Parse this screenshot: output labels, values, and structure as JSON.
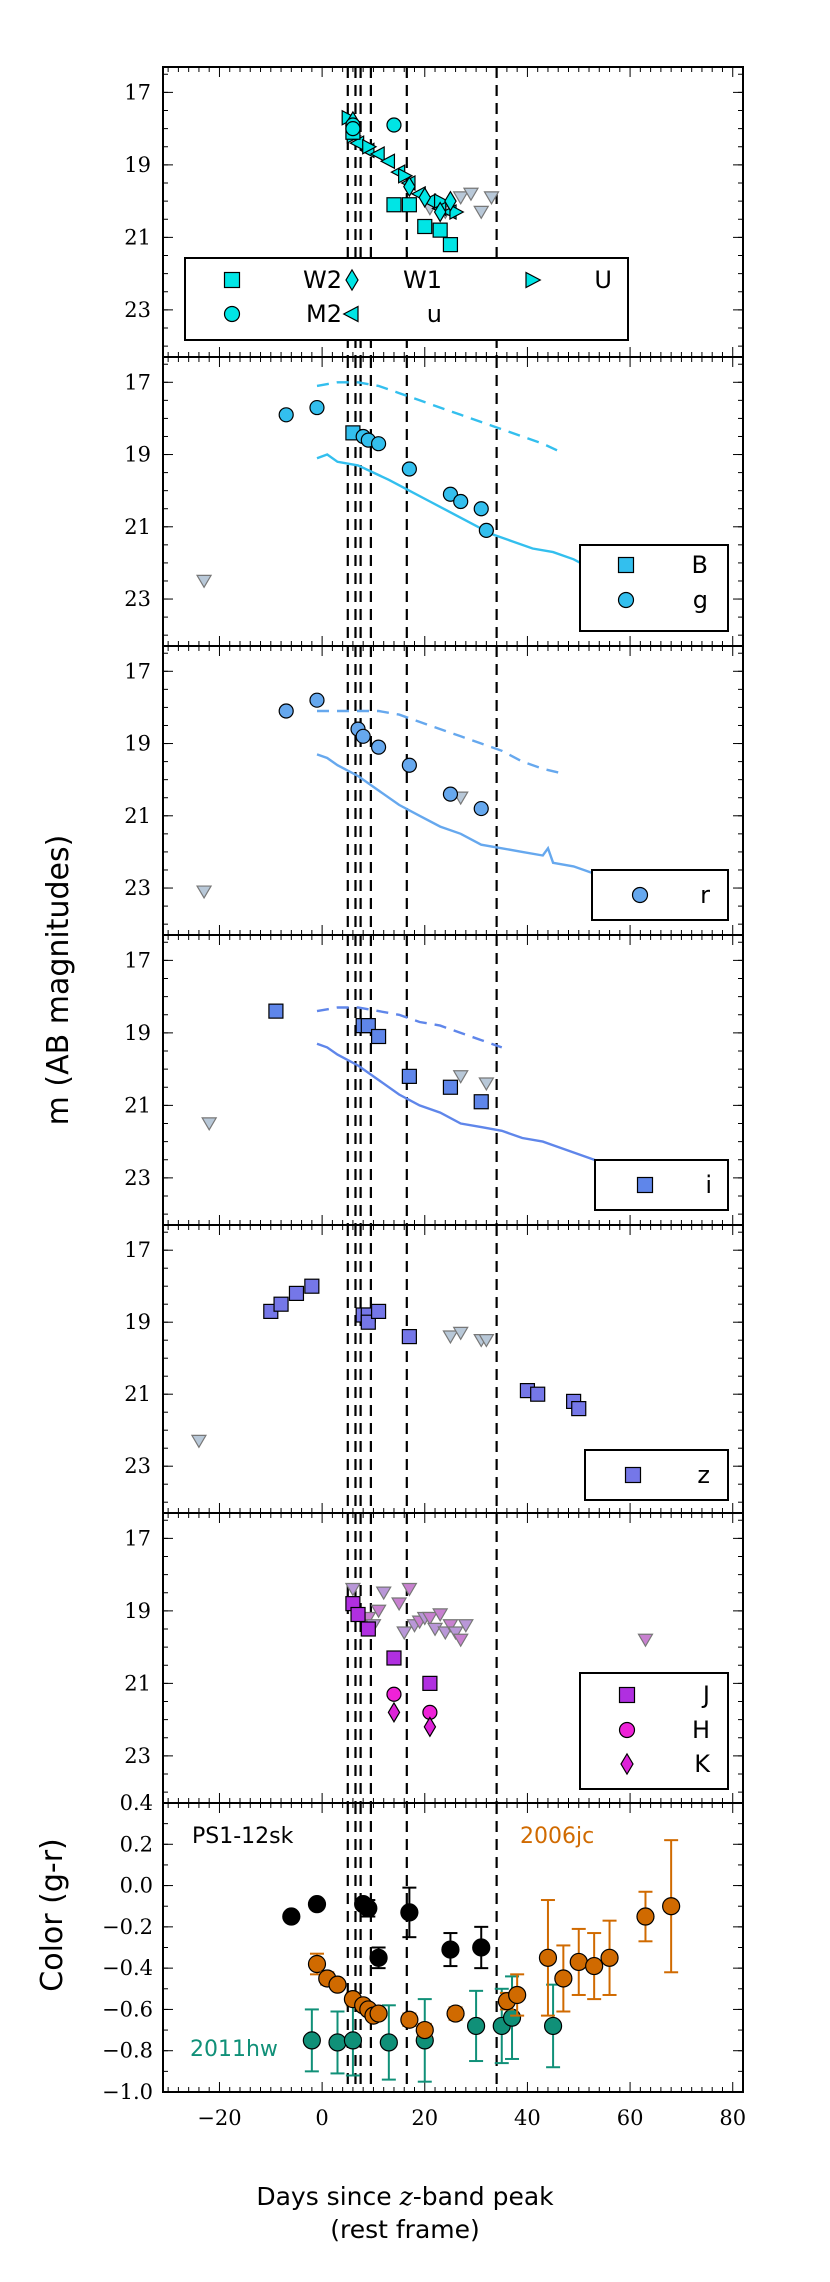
{
  "chart_data": {
    "type": "scatter",
    "x_range": [
      -31,
      82
    ],
    "x_ticks": [
      "−20",
      "0",
      "20",
      "40",
      "60",
      "80"
    ],
    "x_tick_values": [
      -20,
      0,
      20,
      40,
      60,
      80
    ],
    "xlabel_line1": "Days since ",
    "xlabel_z": "z",
    "xlabel_line1b": "-band peak",
    "xlabel_line2": "(rest frame)",
    "shared_ylabel": "m (AB magnitudes)",
    "color_ylabel": "Color (g-r)",
    "vlines": [
      5,
      6.5,
      7.5,
      9.5,
      16.5,
      34
    ],
    "mag_ylim": [
      24.3,
      16.3
    ],
    "mag_ticks": [
      "17",
      "19",
      "21",
      "23"
    ],
    "mag_tick_values": [
      17,
      19,
      21,
      23
    ],
    "uv": {
      "legend": [
        {
          "name": "W2",
          "marker": "square"
        },
        {
          "name": "W1",
          "marker": "diamond"
        },
        {
          "name": "U",
          "marker": "tri-right"
        },
        {
          "name": "M2",
          "marker": "circle"
        },
        {
          "name": "u",
          "marker": "tri-left"
        }
      ],
      "color": "#00e5e5",
      "W2": [
        [
          6,
          18.1
        ],
        [
          14,
          20.1
        ],
        [
          17,
          20.1
        ],
        [
          20,
          20.7
        ],
        [
          23,
          20.8
        ],
        [
          25,
          21.2
        ]
      ],
      "M2": [
        [
          6,
          17.9
        ],
        [
          14,
          17.9
        ],
        [
          6,
          18.0
        ]
      ],
      "W1": [
        [
          6,
          17.8
        ],
        [
          17,
          19.6
        ],
        [
          20,
          19.9
        ],
        [
          23,
          20.3
        ],
        [
          25,
          20.0
        ]
      ],
      "u": [
        [
          7,
          18.4
        ],
        [
          9,
          18.6
        ],
        [
          11,
          18.7
        ],
        [
          13,
          18.9
        ],
        [
          15,
          19.2
        ],
        [
          17,
          19.5
        ],
        [
          19,
          19.8
        ],
        [
          21,
          20.0
        ],
        [
          23,
          20.2
        ],
        [
          25,
          20.3
        ]
      ],
      "U": [
        [
          5,
          17.7
        ],
        [
          6,
          18.2
        ],
        [
          9,
          18.5
        ],
        [
          16,
          19.3
        ],
        [
          23,
          20.0
        ],
        [
          26,
          20.3
        ]
      ],
      "limits": [
        [
          21,
          20.2
        ],
        [
          24,
          20.3
        ],
        [
          27,
          19.9
        ],
        [
          29,
          19.8
        ],
        [
          31,
          20.3
        ],
        [
          33,
          19.9
        ]
      ]
    },
    "g": {
      "legend": [
        {
          "name": "B",
          "marker": "square"
        },
        {
          "name": "g",
          "marker": "circle"
        }
      ],
      "color": "#33bfee",
      "B": [
        [
          6,
          18.4
        ]
      ],
      "g": [
        [
          -7,
          17.9
        ],
        [
          -1,
          17.7
        ],
        [
          8,
          18.5
        ],
        [
          9,
          18.6
        ],
        [
          11,
          18.7
        ],
        [
          17,
          19.4
        ],
        [
          25,
          20.1
        ],
        [
          27,
          20.3
        ],
        [
          31,
          20.5
        ],
        [
          32,
          21.1
        ]
      ],
      "limits": [
        [
          -23,
          22.5
        ]
      ],
      "solid": [
        [
          -1,
          19.1
        ],
        [
          1,
          19.0
        ],
        [
          3,
          19.2
        ],
        [
          7,
          19.3
        ],
        [
          13,
          19.7
        ],
        [
          17,
          20.0
        ],
        [
          21,
          20.3
        ],
        [
          25,
          20.6
        ],
        [
          29,
          20.9
        ],
        [
          33,
          21.2
        ],
        [
          37,
          21.4
        ],
        [
          41,
          21.6
        ],
        [
          45,
          21.7
        ],
        [
          49,
          21.9
        ],
        [
          53,
          22.2
        ],
        [
          57,
          22.3
        ]
      ],
      "dashed": [
        [
          -1,
          17.1
        ],
        [
          3,
          17.0
        ],
        [
          7,
          17.0
        ],
        [
          11,
          17.1
        ],
        [
          15,
          17.3
        ],
        [
          19,
          17.5
        ],
        [
          23,
          17.7
        ],
        [
          27,
          17.9
        ],
        [
          31,
          18.1
        ],
        [
          35,
          18.3
        ],
        [
          39,
          18.5
        ],
        [
          43,
          18.7
        ],
        [
          46,
          18.9
        ]
      ]
    },
    "r": {
      "legend": [
        {
          "name": "r",
          "marker": "circle"
        }
      ],
      "color": "#66a8ee",
      "r": [
        [
          -7,
          18.1
        ],
        [
          -1,
          17.8
        ],
        [
          7,
          18.6
        ],
        [
          8,
          18.8
        ],
        [
          11,
          19.1
        ],
        [
          17,
          19.6
        ],
        [
          25,
          20.4
        ],
        [
          31,
          20.8
        ]
      ],
      "limits": [
        [
          -23,
          23.1
        ],
        [
          27,
          20.5
        ]
      ],
      "solid": [
        [
          -1,
          19.3
        ],
        [
          1,
          19.4
        ],
        [
          3,
          19.6
        ],
        [
          7,
          19.9
        ],
        [
          11,
          20.3
        ],
        [
          15,
          20.7
        ],
        [
          19,
          21.0
        ],
        [
          23,
          21.3
        ],
        [
          27,
          21.5
        ],
        [
          31,
          21.8
        ],
        [
          35,
          21.9
        ],
        [
          39,
          22.0
        ],
        [
          43,
          22.1
        ],
        [
          44,
          21.9
        ],
        [
          45,
          22.3
        ],
        [
          49,
          22.4
        ],
        [
          53,
          22.6
        ],
        [
          57,
          22.8
        ]
      ],
      "dashed": [
        [
          -1,
          18.1
        ],
        [
          3,
          18.1
        ],
        [
          7,
          18.1
        ],
        [
          11,
          18.1
        ],
        [
          15,
          18.2
        ],
        [
          19,
          18.4
        ],
        [
          23,
          18.6
        ],
        [
          27,
          18.8
        ],
        [
          31,
          19.0
        ],
        [
          35,
          19.2
        ],
        [
          39,
          19.5
        ],
        [
          43,
          19.7
        ],
        [
          46,
          19.8
        ]
      ]
    },
    "i": {
      "legend": [
        {
          "name": "i",
          "marker": "square"
        }
      ],
      "color": "#5f86ea",
      "i": [
        [
          -9,
          18.4
        ],
        [
          8,
          18.8
        ],
        [
          9,
          18.8
        ],
        [
          11,
          19.1
        ],
        [
          17,
          20.2
        ],
        [
          25,
          20.5
        ],
        [
          31,
          20.9
        ]
      ],
      "limits": [
        [
          -22,
          21.5
        ],
        [
          27,
          20.2
        ],
        [
          32,
          20.4
        ]
      ],
      "solid": [
        [
          -1,
          19.3
        ],
        [
          1,
          19.4
        ],
        [
          3,
          19.6
        ],
        [
          7,
          19.9
        ],
        [
          11,
          20.3
        ],
        [
          15,
          20.7
        ],
        [
          19,
          21.0
        ],
        [
          23,
          21.2
        ],
        [
          27,
          21.5
        ],
        [
          31,
          21.6
        ],
        [
          35,
          21.7
        ],
        [
          39,
          21.9
        ],
        [
          43,
          22.0
        ],
        [
          47,
          22.2
        ],
        [
          51,
          22.4
        ],
        [
          55,
          22.6
        ],
        [
          57,
          22.7
        ]
      ],
      "dashed": [
        [
          -1,
          18.4
        ],
        [
          3,
          18.3
        ],
        [
          7,
          18.3
        ],
        [
          11,
          18.4
        ],
        [
          15,
          18.5
        ],
        [
          19,
          18.7
        ],
        [
          23,
          18.8
        ],
        [
          27,
          19.0
        ],
        [
          31,
          19.2
        ],
        [
          35,
          19.4
        ]
      ]
    },
    "z": {
      "legend": [
        {
          "name": "z",
          "marker": "square"
        }
      ],
      "color": "#7577e8",
      "z": [
        [
          -10,
          18.7
        ],
        [
          -8,
          18.5
        ],
        [
          -5,
          18.2
        ],
        [
          -2,
          18.0
        ],
        [
          8,
          18.8
        ],
        [
          9,
          18.8
        ],
        [
          9,
          19.0
        ],
        [
          11,
          18.7
        ],
        [
          17,
          19.4
        ],
        [
          40,
          20.9
        ],
        [
          42,
          21.0
        ],
        [
          49,
          21.2
        ],
        [
          50,
          21.4
        ]
      ],
      "limits": [
        [
          -24,
          22.3
        ],
        [
          25,
          19.4
        ],
        [
          27,
          19.3
        ],
        [
          31,
          19.5
        ],
        [
          32,
          19.5
        ]
      ]
    },
    "nir": {
      "legend": [
        {
          "name": "J",
          "marker": "square"
        },
        {
          "name": "H",
          "marker": "circle"
        },
        {
          "name": "K",
          "marker": "diamond"
        }
      ],
      "colors": {
        "J": "#b02fe0",
        "H": "#ee22d8",
        "K": "#dd22d8"
      },
      "J": [
        [
          6,
          18.8
        ],
        [
          7,
          19.1
        ],
        [
          9,
          19.5
        ],
        [
          14,
          20.3
        ],
        [
          21,
          21.0
        ]
      ],
      "H": [
        [
          14,
          21.3
        ],
        [
          21,
          21.8
        ]
      ],
      "K": [
        [
          14,
          21.8
        ],
        [
          21,
          22.2
        ]
      ],
      "limits": [
        [
          6,
          18.4
        ],
        [
          9,
          19.2
        ],
        [
          10,
          19.4
        ],
        [
          11,
          19.0
        ],
        [
          12,
          18.5
        ],
        [
          15,
          18.8
        ],
        [
          16,
          19.6
        ],
        [
          17,
          18.4
        ],
        [
          18,
          19.4
        ],
        [
          19,
          19.3
        ],
        [
          20,
          19.2
        ],
        [
          21,
          19.2
        ],
        [
          22,
          19.5
        ],
        [
          23,
          19.1
        ],
        [
          24,
          19.6
        ],
        [
          25,
          19.4
        ],
        [
          26,
          19.6
        ],
        [
          27,
          19.8
        ],
        [
          28,
          19.4
        ],
        [
          63,
          19.8
        ]
      ],
      "limit_colors": [
        "#b997d8",
        "#c880d0"
      ]
    },
    "color_panel": {
      "ylim": [
        -1.0,
        0.4
      ],
      "y_ticks": [
        "0.4",
        "0.2",
        "0.0",
        "−0.2",
        "−0.4",
        "−0.6",
        "−0.8",
        "−1.0"
      ],
      "y_tick_values": [
        0.4,
        0.2,
        0.0,
        -0.2,
        -0.4,
        -0.6,
        -0.8,
        -1.0
      ],
      "labels": [
        {
          "text": "PS1-12sk",
          "color": "#000000"
        },
        {
          "text": "2006jc",
          "color": "#d06a00"
        },
        {
          "text": "2011hw",
          "color": "#109078"
        }
      ],
      "series": [
        {
          "name": "PS1-12sk",
          "color": "#000000",
          "points": [
            [
              -6,
              -0.15,
              0.02
            ],
            [
              -1,
              -0.09,
              0.02
            ],
            [
              8,
              -0.09,
              0.02
            ],
            [
              9,
              -0.11,
              0.04
            ],
            [
              11,
              -0.35,
              0.05
            ],
            [
              17,
              -0.13,
              0.12
            ],
            [
              25,
              -0.31,
              0.08
            ],
            [
              31,
              -0.3,
              0.1
            ]
          ]
        },
        {
          "name": "2006jc",
          "color": "#d06a00",
          "points": [
            [
              -1,
              -0.38,
              0.05
            ],
            [
              1,
              -0.45,
              0.03
            ],
            [
              3,
              -0.48,
              0.02
            ],
            [
              6,
              -0.55,
              0.03
            ],
            [
              8,
              -0.58,
              0.02
            ],
            [
              9,
              -0.6,
              0.02
            ],
            [
              10,
              -0.63,
              0.02
            ],
            [
              11,
              -0.62,
              0.02
            ],
            [
              17,
              -0.65,
              0.03
            ],
            [
              20,
              -0.7,
              0.03
            ],
            [
              26,
              -0.62,
              0.03
            ],
            [
              36,
              -0.56,
              0.04
            ],
            [
              38,
              -0.53,
              0.1
            ],
            [
              44,
              -0.35,
              0.28
            ],
            [
              47,
              -0.45,
              0.16
            ],
            [
              50,
              -0.37,
              0.16
            ],
            [
              53,
              -0.39,
              0.16
            ],
            [
              56,
              -0.35,
              0.18
            ],
            [
              63,
              -0.15,
              0.12
            ],
            [
              68,
              -0.1,
              0.32
            ]
          ]
        },
        {
          "name": "2011hw",
          "color": "#109078",
          "points": [
            [
              -2,
              -0.75,
              0.15
            ],
            [
              3,
              -0.76,
              0.15
            ],
            [
              6,
              -0.75,
              0.17
            ],
            [
              13,
              -0.76,
              0.18
            ],
            [
              20,
              -0.75,
              0.2
            ],
            [
              30,
              -0.68,
              0.17
            ],
            [
              35,
              -0.68,
              0.18
            ],
            [
              37,
              -0.64,
              0.2
            ],
            [
              45,
              -0.68,
              0.2
            ]
          ]
        }
      ]
    }
  }
}
